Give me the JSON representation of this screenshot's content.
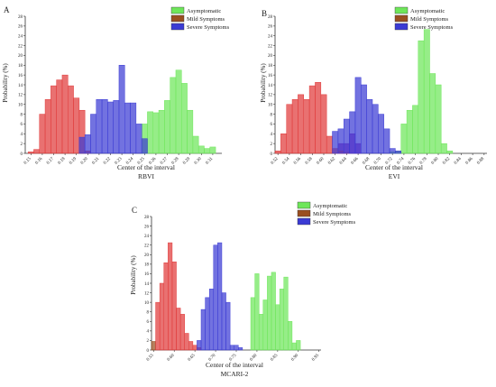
{
  "panels_text": {
    "A": {
      "letter": "A",
      "ylabel": "Probability (%)",
      "xlabel": "Center of the interval",
      "sublabel": "RBVI"
    },
    "B": {
      "letter": "B",
      "ylabel": "Probability (%)",
      "xlabel": "Center of the interval",
      "sublabel": "EVI"
    },
    "C": {
      "letter": "C",
      "ylabel": "Probability (%)",
      "xlabel": "Center of the interval",
      "sublabel": "MCARI-2"
    }
  },
  "legend": [
    {
      "name": "Asymptomatic",
      "color": "#6ee65a"
    },
    {
      "name": "Mild Symptoms",
      "color": "#9a4f20"
    },
    {
      "name": "Severe Symptoms",
      "color": "#3b3bd4"
    }
  ],
  "chart_data": [
    {
      "type": "bar",
      "panel": "A",
      "xlabel": "Center of the interval",
      "ylabel": "Probability (%)",
      "sublabel": "RBVI",
      "xlim": [
        0.145,
        0.318
      ],
      "ylim": [
        0,
        28
      ],
      "bin_width": 0.005,
      "xticks": [
        0.15,
        0.16,
        0.17,
        0.18,
        0.19,
        0.2,
        0.21,
        0.22,
        0.23,
        0.24,
        0.25,
        0.26,
        0.27,
        0.28,
        0.29,
        0.3,
        0.31
      ],
      "yticks": [
        0,
        2,
        4,
        6,
        8,
        10,
        12,
        14,
        16,
        18,
        20,
        22,
        24,
        26,
        28
      ],
      "series": [
        {
          "name": "Asymptomatic",
          "color": "#6ee65a",
          "x": [
            0.25,
            0.255,
            0.26,
            0.265,
            0.27,
            0.275,
            0.28,
            0.285,
            0.29,
            0.295,
            0.3,
            0.305,
            0.31
          ],
          "values": [
            6.0,
            8.5,
            8.3,
            8.8,
            10.8,
            15.5,
            17.0,
            14.3,
            8.8,
            3.5,
            1.5,
            1.0,
            1.3
          ]
        },
        {
          "name": "Mild Symptoms",
          "color": "#e03a3a",
          "x": [
            0.15,
            0.155,
            0.16,
            0.165,
            0.17,
            0.175,
            0.18,
            0.185,
            0.19,
            0.195,
            0.2
          ],
          "values": [
            0.3,
            0.8,
            8.0,
            11.0,
            13.8,
            15.0,
            16.0,
            13.8,
            11.3,
            8.8,
            0.5
          ]
        },
        {
          "name": "Severe Symptoms",
          "color": "#3b3bd4",
          "x": [
            0.195,
            0.2,
            0.205,
            0.21,
            0.215,
            0.22,
            0.225,
            0.23,
            0.235,
            0.24,
            0.245,
            0.25
          ],
          "values": [
            3.3,
            3.8,
            8.0,
            11.0,
            11.0,
            10.5,
            10.8,
            18.0,
            10.3,
            10.3,
            6.0,
            3.0
          ]
        }
      ]
    },
    {
      "type": "bar",
      "panel": "B",
      "xlabel": "Center of the interval",
      "ylabel": "Probability (%)",
      "sublabel": "EVI",
      "xlim": [
        0.515,
        0.885
      ],
      "ylim": [
        0,
        28
      ],
      "bin_width": 0.01,
      "xticks": [
        0.52,
        0.54,
        0.56,
        0.58,
        0.6,
        0.62,
        0.64,
        0.66,
        0.68,
        0.7,
        0.72,
        0.74,
        0.76,
        0.78,
        0.8,
        0.82,
        0.84,
        0.86,
        0.88
      ],
      "yticks": [
        0,
        2,
        4,
        6,
        8,
        10,
        12,
        14,
        16,
        18,
        20,
        22,
        24,
        26,
        28
      ],
      "series": [
        {
          "name": "Asymptomatic",
          "color": "#6ee65a",
          "x": [
            0.72,
            0.73,
            0.74,
            0.75,
            0.76,
            0.77,
            0.78,
            0.79,
            0.8,
            0.81,
            0.82,
            0.83,
            0.84,
            0.85,
            0.86,
            0.87
          ],
          "values": [
            0.3,
            0.5,
            6.0,
            8.8,
            9.8,
            23.0,
            25.3,
            16.3,
            14.0,
            2.0,
            0.5,
            0.0,
            0.0,
            0.0,
            0.0,
            0.0
          ]
        },
        {
          "name": "Mild Symptoms",
          "color": "#8a1aa8",
          "x": [
            0.63,
            0.64,
            0.65,
            0.66
          ],
          "values": [
            2.0,
            2.0,
            4.0,
            2.0
          ]
        },
        {
          "name": "Severe Symptoms",
          "color": "#e03a3a",
          "x": [
            0.52,
            0.53,
            0.54,
            0.55,
            0.56,
            0.57,
            0.58,
            0.59,
            0.6,
            0.61,
            0.62,
            0.63,
            0.64
          ],
          "values": [
            0.5,
            4.0,
            10.0,
            11.0,
            12.0,
            11.0,
            13.8,
            14.5,
            12.0,
            3.5,
            1.0,
            0.5,
            0.2
          ]
        },
        {
          "name": "Severe Symptoms",
          "color": "#3b3bd4",
          "x": [
            0.62,
            0.63,
            0.64,
            0.65,
            0.66,
            0.67,
            0.68,
            0.69,
            0.7,
            0.71,
            0.72,
            0.73
          ],
          "values": [
            4.5,
            5.0,
            7.0,
            8.5,
            15.5,
            14.0,
            11.0,
            10.0,
            8.0,
            5.0,
            1.0,
            0.5
          ]
        }
      ]
    },
    {
      "type": "bar",
      "panel": "C",
      "xlabel": "Center of the interval",
      "ylabel": "Probability (%)",
      "sublabel": "MCARI-2",
      "xlim": [
        0.545,
        0.955
      ],
      "ylim": [
        0,
        28
      ],
      "bin_width": 0.01,
      "xticks": [
        0.55,
        0.6,
        0.65,
        0.7,
        0.75,
        0.8,
        0.85,
        0.9,
        0.95
      ],
      "yticks": [
        0,
        2,
        4,
        6,
        8,
        10,
        12,
        14,
        16,
        18,
        20,
        22,
        24,
        26,
        28
      ],
      "series": [
        {
          "name": "Asymptomatic",
          "color": "#6ee65a",
          "x": [
            0.79,
            0.8,
            0.81,
            0.82,
            0.83,
            0.84,
            0.85,
            0.86,
            0.87,
            0.88,
            0.89,
            0.9,
            0.91,
            0.92,
            0.93,
            0.94,
            0.95
          ],
          "values": [
            11.0,
            16.0,
            7.5,
            10.5,
            15.5,
            16.3,
            9.5,
            12.8,
            15.3,
            6.0,
            1.5,
            2.0,
            0.0,
            0.0,
            0.0,
            0.0,
            0.0
          ]
        },
        {
          "name": "Mild Symptoms",
          "color": "#9a4f20",
          "x": [
            0.55,
            0.56,
            0.57,
            0.58
          ],
          "values": [
            1.8,
            0.0,
            0.0,
            0.0
          ]
        },
        {
          "name": "Mild Symptoms",
          "color": "#e03a3a",
          "x": [
            0.56,
            0.57,
            0.58,
            0.59,
            0.6,
            0.61,
            0.62,
            0.63,
            0.64,
            0.65,
            0.66,
            0.67,
            0.68
          ],
          "values": [
            10.0,
            14.0,
            18.3,
            22.5,
            18.5,
            8.8,
            7.5,
            3.5,
            1.8,
            1.0,
            0.5,
            0.0,
            0.0
          ]
        },
        {
          "name": "Severe Symptoms",
          "color": "#3b3bd4",
          "x": [
            0.66,
            0.67,
            0.68,
            0.69,
            0.7,
            0.71,
            0.72,
            0.73,
            0.74,
            0.75,
            0.76,
            0.77,
            0.78,
            0.79,
            0.8
          ],
          "values": [
            2.0,
            8.5,
            11.0,
            12.8,
            22.0,
            22.5,
            12.0,
            10.0,
            1.0,
            1.0,
            0.5,
            0.0,
            0.0,
            0.0,
            0.0
          ]
        }
      ]
    }
  ]
}
